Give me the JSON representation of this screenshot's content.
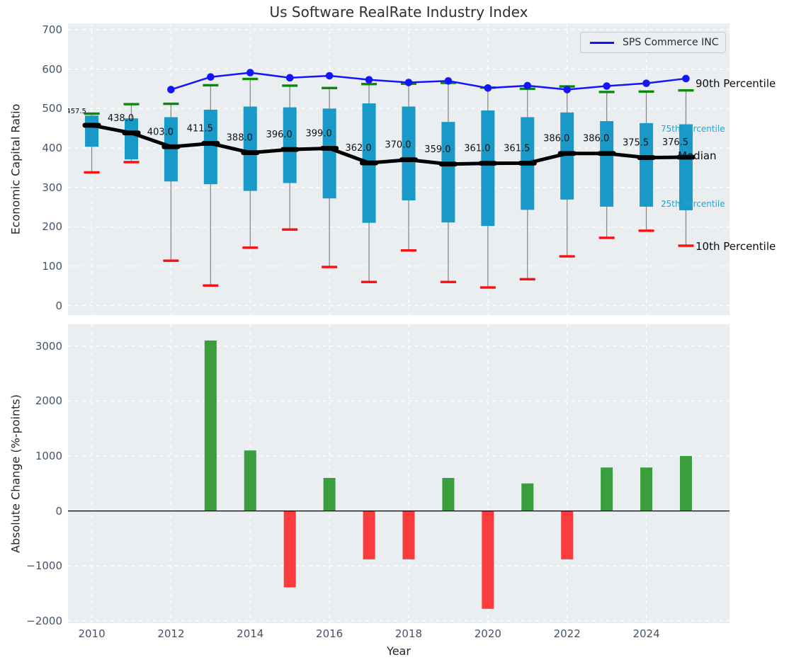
{
  "title": "Us Software RealRate Industry Index",
  "legend": {
    "label": "SPS Commerce INC"
  },
  "annotations": {
    "p90": "90th Percentile",
    "p75": "75th Percentile",
    "median": "Median",
    "p25": "25th Percentile",
    "p10": "10th Percentile"
  },
  "colors": {
    "plot_bg": "#eaeef0",
    "grid": "#ffffff",
    "box": "#1899c7",
    "sps_line": "#1414ff",
    "median_line": "#000000",
    "p90_cap": "#0a8a0a",
    "p10_cap": "#f80f0f",
    "whisker": "#8a8a8a",
    "positive_bar": "#3a9e3c",
    "negative_bar": "#fa3c3c",
    "zero_line": "#000000",
    "tick_label": "#44546a",
    "axis_label": "#262626",
    "annotation_cyan": "#1ba6d9",
    "median_label": "#111111"
  },
  "chart_data": [
    {
      "type": "boxplot",
      "title": "Us Software RealRate Industry Index",
      "ylabel": "Economic Capital Ratio",
      "ylim": [
        -24,
        716
      ],
      "xlim": [
        2009.4,
        2026.1
      ],
      "yticks": [
        0,
        100,
        200,
        300,
        400,
        500,
        600,
        700
      ],
      "xticks": [
        2010,
        2012,
        2014,
        2016,
        2018,
        2020,
        2022,
        2024
      ],
      "grid": "dashed-white",
      "legend_position": "upper right",
      "years": [
        2010,
        2011,
        2012,
        2013,
        2014,
        2015,
        2016,
        2017,
        2018,
        2019,
        2020,
        2021,
        2022,
        2023,
        2024,
        2025
      ],
      "median": [
        457.5,
        438.0,
        403.0,
        411.5,
        388.0,
        396.0,
        399.0,
        362.0,
        370.0,
        359.0,
        361.0,
        361.5,
        386.0,
        386.0,
        375.5,
        376.5
      ],
      "p75": [
        482,
        475,
        478,
        497,
        505,
        503,
        500,
        513,
        505,
        466,
        495,
        478,
        490,
        468,
        463,
        460
      ],
      "p25": [
        403,
        371,
        315,
        308,
        291,
        311,
        272,
        210,
        267,
        211,
        202,
        243,
        269,
        251,
        251,
        242
      ],
      "p90": [
        487,
        511,
        512,
        559,
        575,
        558,
        552,
        562,
        563,
        565,
        553,
        550,
        556,
        542,
        543,
        546
      ],
      "p10": [
        338,
        364,
        114,
        51,
        147,
        193,
        98,
        60,
        140,
        60,
        46,
        67,
        125,
        172,
        190,
        152
      ],
      "sps_commerce": {
        "name": "SPS Commerce INC",
        "years": [
          2012,
          2013,
          2014,
          2015,
          2016,
          2017,
          2018,
          2019,
          2020,
          2021,
          2022,
          2023,
          2024,
          2025
        ],
        "values": [
          548,
          580,
          591,
          578,
          583,
          573,
          566,
          570,
          552,
          558,
          548,
          557,
          564,
          576
        ]
      }
    },
    {
      "type": "bar",
      "ylabel": "Absolute Change (%-points)",
      "xlabel": "Year",
      "ylim": [
        -2040,
        3395
      ],
      "xlim": [
        2009.4,
        2026.1
      ],
      "yticks": [
        -2000,
        -1000,
        0,
        1000,
        2000,
        3000
      ],
      "xticks": [
        2010,
        2012,
        2014,
        2016,
        2018,
        2020,
        2022,
        2024
      ],
      "grid": "dashed-white",
      "years": [
        2013,
        2014,
        2015,
        2016,
        2017,
        2018,
        2019,
        2020,
        2021,
        2022,
        2023,
        2024,
        2025
      ],
      "values": [
        3100,
        1100,
        -1390,
        600,
        -880,
        -880,
        600,
        -1780,
        500,
        -880,
        790,
        790,
        1000
      ]
    }
  ]
}
